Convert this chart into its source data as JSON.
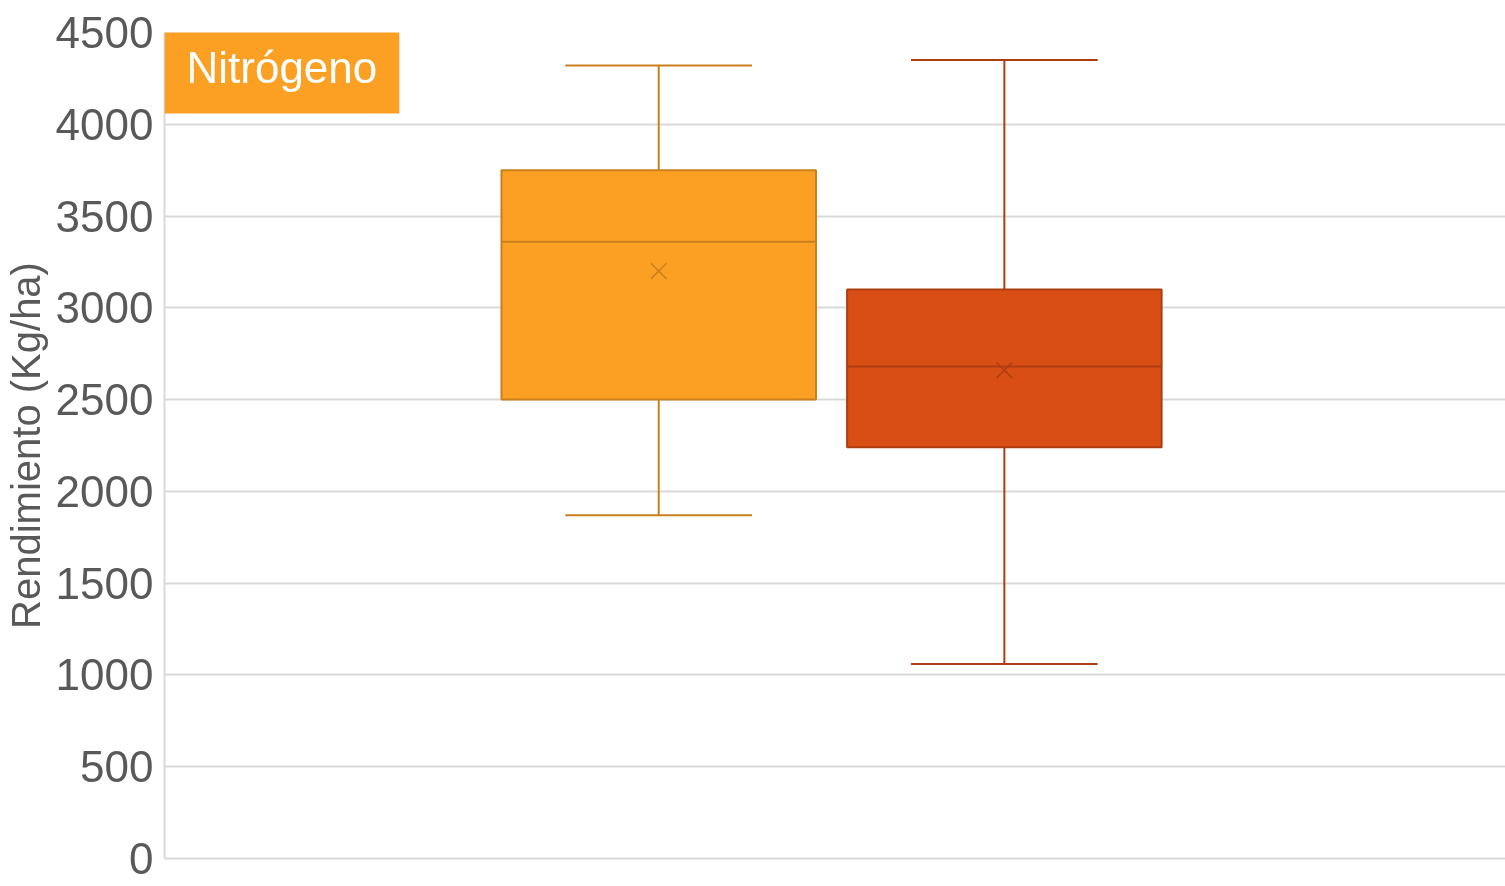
{
  "chart_data": {
    "type": "box",
    "ylabel": "Rendimiento (Kg/ha)",
    "categories": [
      null
    ],
    "ylim": [
      0,
      4500
    ],
    "yticks": [
      0,
      500,
      1000,
      1500,
      2000,
      2500,
      3000,
      3500,
      4000,
      4500
    ],
    "grid": "y",
    "legend": "top left",
    "tick_labels": "y",
    "marker": "cross",
    "series": [
      {
        "name": "Nitrógeno",
        "color": "#fca024",
        "boxes": [
          {
            "low": 1870,
            "q1": 2500,
            "median": 3360,
            "q3": 3750,
            "high": 4320,
            "mean": 3200
          }
        ]
      },
      {
        "color": "#d94e14",
        "boxes": [
          {
            "low": 1060,
            "q1": 2240,
            "median": 2680,
            "q3": 3100,
            "high": 4350,
            "mean": 2660
          }
        ]
      }
    ]
  }
}
